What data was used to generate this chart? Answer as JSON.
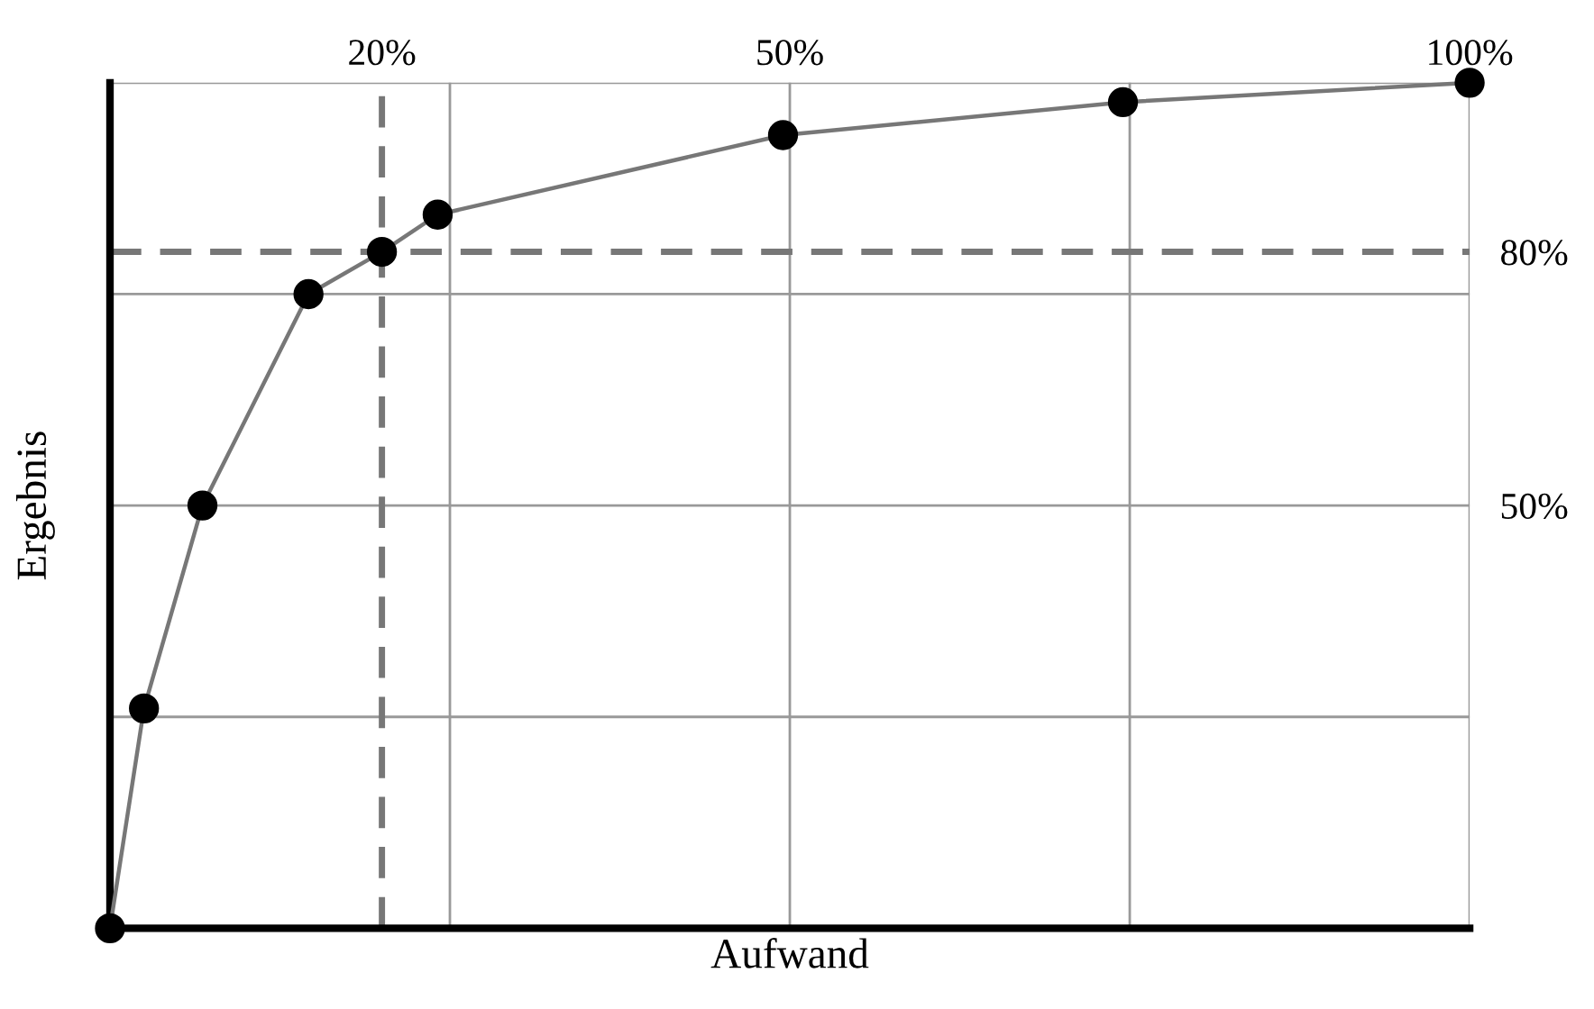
{
  "chart_data": {
    "type": "line",
    "xlabel": "Aufwand",
    "ylabel": "Ergebnis",
    "x": [
      0,
      2.5,
      6.8,
      14.6,
      20,
      24.1,
      49.5,
      74.5,
      100
    ],
    "series": [
      {
        "color": "#777777",
        "values": [
          0,
          26,
          50,
          75,
          80,
          84.4,
          93.8,
          97.7,
          100
        ]
      }
    ],
    "marker": "circle",
    "xlim": [
      0,
      100
    ],
    "ylim": [
      0,
      100
    ],
    "xticks": [
      {
        "value": 25,
        "label": null
      },
      {
        "value": 50,
        "label": "50%"
      },
      {
        "value": 75,
        "label": null
      },
      {
        "value": 100,
        "label": "100%"
      }
    ],
    "yticks": [
      {
        "value": 25,
        "label": null
      },
      {
        "value": 50,
        "label": "50%"
      },
      {
        "value": 75,
        "label": null
      },
      {
        "value": 80,
        "label": "80%"
      },
      {
        "value": 100,
        "label": null
      }
    ],
    "grid": true,
    "ref_lines": [
      {
        "axis": "x",
        "value": 20,
        "label": "20%",
        "color": "#777777",
        "line_style": "dashed"
      },
      {
        "axis": "y",
        "value": 80,
        "color": "#777777",
        "line_style": "dashed"
      }
    ]
  }
}
